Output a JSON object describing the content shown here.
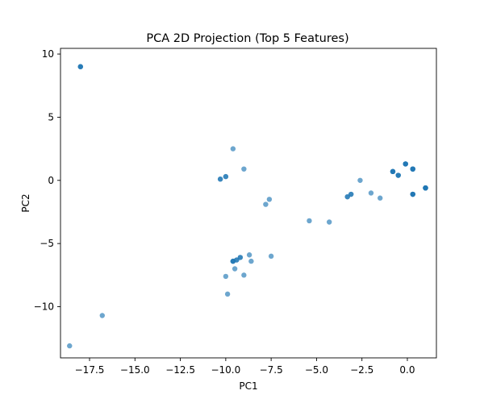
{
  "chart_data": {
    "type": "scatter",
    "title": "PCA 2D Projection (Top 5 Features)",
    "xlabel": "PC1",
    "ylabel": "PC2",
    "xlim": [
      -19.1,
      1.6
    ],
    "ylim": [
      -14.05,
      10.45
    ],
    "xticks": [
      -17.5,
      -15.0,
      -12.5,
      -10.0,
      -7.5,
      -5.0,
      -2.5,
      0.0
    ],
    "xtick_labels": [
      "−17.5",
      "−15.0",
      "−12.5",
      "−10.0",
      "−7.5",
      "−5.0",
      "−2.5",
      "0.0"
    ],
    "yticks": [
      10,
      5,
      0,
      -5,
      -10
    ],
    "ytick_labels": [
      "10",
      "5",
      "0",
      "−5",
      "−10"
    ],
    "grid": false,
    "marker_color": "#1f77b4",
    "marker_alpha": 0.65,
    "points": [
      {
        "x": -18.0,
        "y": 9.0
      },
      {
        "x": -18.0,
        "y": 9.0
      },
      {
        "x": -18.0,
        "y": 9.0
      },
      {
        "x": -18.6,
        "y": -13.1
      },
      {
        "x": -16.8,
        "y": -10.7
      },
      {
        "x": -9.6,
        "y": 2.5
      },
      {
        "x": -9.0,
        "y": 0.9
      },
      {
        "x": -10.3,
        "y": 0.1
      },
      {
        "x": -10.3,
        "y": 0.1
      },
      {
        "x": -10.0,
        "y": 0.3
      },
      {
        "x": -10.0,
        "y": 0.3
      },
      {
        "x": -7.6,
        "y": -1.5
      },
      {
        "x": -7.8,
        "y": -1.9
      },
      {
        "x": -8.7,
        "y": -5.9
      },
      {
        "x": -8.6,
        "y": -6.4
      },
      {
        "x": -7.5,
        "y": -6.0
      },
      {
        "x": -9.2,
        "y": -6.1
      },
      {
        "x": -9.2,
        "y": -6.1
      },
      {
        "x": -9.4,
        "y": -6.3
      },
      {
        "x": -9.4,
        "y": -6.3
      },
      {
        "x": -9.6,
        "y": -6.4
      },
      {
        "x": -9.6,
        "y": -6.4
      },
      {
        "x": -9.6,
        "y": -6.4
      },
      {
        "x": -9.5,
        "y": -7.0
      },
      {
        "x": -9.0,
        "y": -7.5
      },
      {
        "x": -10.0,
        "y": -7.6
      },
      {
        "x": -9.9,
        "y": -9.0
      },
      {
        "x": -5.4,
        "y": -3.2
      },
      {
        "x": -4.3,
        "y": -3.3
      },
      {
        "x": -3.3,
        "y": -1.3
      },
      {
        "x": -3.3,
        "y": -1.3
      },
      {
        "x": -3.1,
        "y": -1.1
      },
      {
        "x": -3.1,
        "y": -1.1
      },
      {
        "x": -2.6,
        "y": 0.0
      },
      {
        "x": -2.0,
        "y": -1.0
      },
      {
        "x": -1.5,
        "y": -1.4
      },
      {
        "x": -0.8,
        "y": 0.7
      },
      {
        "x": -0.8,
        "y": 0.7
      },
      {
        "x": -0.8,
        "y": 0.7
      },
      {
        "x": -0.8,
        "y": 0.7
      },
      {
        "x": -0.5,
        "y": 0.4
      },
      {
        "x": -0.5,
        "y": 0.4
      },
      {
        "x": -0.5,
        "y": 0.4
      },
      {
        "x": -0.1,
        "y": 1.3
      },
      {
        "x": -0.1,
        "y": 1.3
      },
      {
        "x": -0.1,
        "y": 1.3
      },
      {
        "x": -0.1,
        "y": 1.3
      },
      {
        "x": 0.3,
        "y": 0.9
      },
      {
        "x": 0.3,
        "y": 0.9
      },
      {
        "x": 0.3,
        "y": 0.9
      },
      {
        "x": 0.3,
        "y": 0.9
      },
      {
        "x": 0.3,
        "y": -1.1
      },
      {
        "x": 0.3,
        "y": -1.1
      },
      {
        "x": 0.3,
        "y": -1.1
      },
      {
        "x": 0.3,
        "y": -1.1
      },
      {
        "x": 1.0,
        "y": -0.6
      },
      {
        "x": 1.0,
        "y": -0.6
      },
      {
        "x": 1.0,
        "y": -0.6
      },
      {
        "x": 1.0,
        "y": -0.6
      },
      {
        "x": 1.0,
        "y": -0.6
      }
    ]
  }
}
